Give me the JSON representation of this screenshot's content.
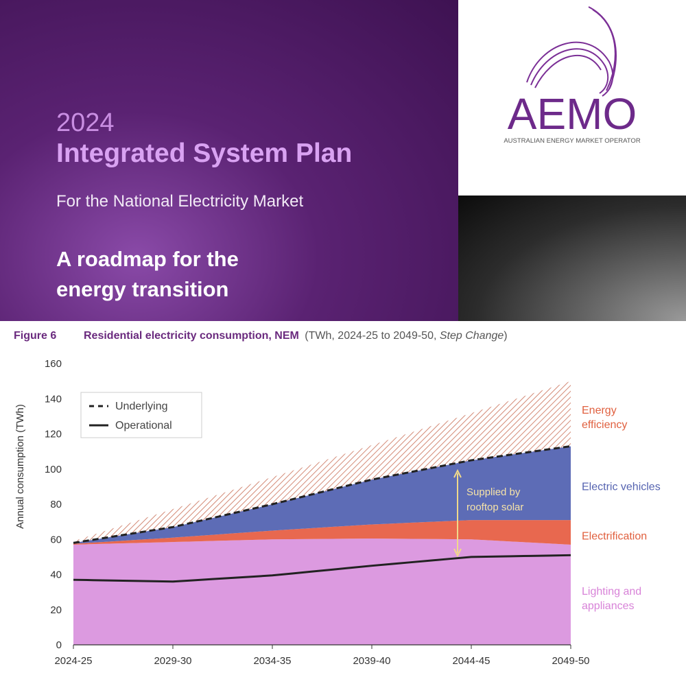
{
  "cover": {
    "year": "2024",
    "title": "Integrated System Plan",
    "subtitle": "For the National Electricity Market",
    "tagline": [
      "A roadmap for the",
      "energy transition"
    ]
  },
  "logo": {
    "name": "AEMO",
    "full_name": "AUSTRALIAN ENERGY MARKET OPERATOR"
  },
  "chart_data": {
    "type": "area",
    "stacked": true,
    "figure": "Figure 6",
    "title": "Residential electricity consumption, NEM",
    "subtitle_parts": [
      "(TWh, 2024-25 to 2049-50, ",
      "Step Change",
      ")"
    ],
    "y_label": "Annual consumption (TWh)",
    "categories": [
      "2024-25",
      null,
      null,
      null,
      null,
      "2029-30",
      null,
      null,
      null,
      null,
      "2034-35",
      null,
      null,
      null,
      null,
      "2039-40",
      null,
      null,
      null,
      null,
      "2044-45",
      null,
      null,
      null,
      null,
      "2049-50"
    ],
    "ylim": [
      0,
      160
    ],
    "yticks": [
      0,
      20,
      40,
      60,
      80,
      100,
      120,
      140,
      160
    ],
    "series": [
      {
        "name": "Lighting and appliances",
        "type": "area",
        "color": "#dc9ae0",
        "label_color": "#d883d8",
        "values": [
          57,
          57.3,
          57.6,
          57.9,
          58.2,
          58.5,
          58.8,
          59.1,
          59.4,
          59.7,
          60,
          60.1,
          60.2,
          60.3,
          60.4,
          60.5,
          60.4,
          60.3,
          60.2,
          60.1,
          60,
          59.4,
          58.8,
          58.2,
          57.6,
          57
        ]
      },
      {
        "name": "Electrification",
        "type": "area",
        "color": "#e8684f",
        "label_color": "#e0603f",
        "values": [
          0.5,
          0.9,
          1.3,
          1.7,
          2.1,
          2.5,
          3,
          3.5,
          4,
          4.5,
          5,
          5.6,
          6.2,
          6.8,
          7.4,
          8,
          8.6,
          9.2,
          9.8,
          10.4,
          11,
          11.6,
          12.2,
          12.8,
          13.4,
          14
        ]
      },
      {
        "name": "Electric vehicles",
        "type": "area",
        "color": "#5d6cb6",
        "label_color": "#5563b0",
        "values": [
          0.5,
          1.6,
          2.7,
          3.8,
          4.9,
          6,
          7.8,
          9.6,
          11.4,
          13.2,
          15,
          17.1,
          19.2,
          21.3,
          23.4,
          25.5,
          27.2,
          28.9,
          30.6,
          32.3,
          34,
          35.6,
          37.2,
          38.8,
          40.4,
          42
        ]
      },
      {
        "name": "Energy efficiency",
        "type": "area",
        "hatch": true,
        "color": "#d38a76",
        "label_color": "#e0603f",
        "values": [
          1,
          2.84,
          4.68,
          6.52,
          8.36,
          10.2,
          11.24,
          12.28,
          13.32,
          14.36,
          15.4,
          16.24,
          17.08,
          17.92,
          18.76,
          19.6,
          21.04,
          22.48,
          23.92,
          25.36,
          26.8,
          28.84,
          30.88,
          32.92,
          34.96,
          37
        ]
      },
      {
        "name": "Underlying",
        "type": "line",
        "dashed": true,
        "color": "#222222",
        "values": [
          58,
          59.8,
          61.6,
          63.4,
          65.2,
          67,
          69.6,
          72.2,
          74.8,
          77.4,
          80,
          82.8,
          85.6,
          88.4,
          91.2,
          94,
          96.2,
          98.4,
          100.6,
          102.8,
          105,
          106.6,
          108.2,
          109.8,
          111.4,
          113
        ]
      },
      {
        "name": "Operational",
        "type": "line",
        "dashed": false,
        "color": "#222222",
        "values": [
          37,
          36.8,
          36.6,
          36.4,
          36.2,
          36,
          36.7,
          37.4,
          38.1,
          38.8,
          39.5,
          40.6,
          41.7,
          42.8,
          43.9,
          45,
          46,
          47,
          48,
          49,
          50,
          50.2,
          50.4,
          50.6,
          50.8,
          51
        ]
      }
    ],
    "annotation": "Supplied by rooftop solar",
    "legend": "upper left"
  }
}
